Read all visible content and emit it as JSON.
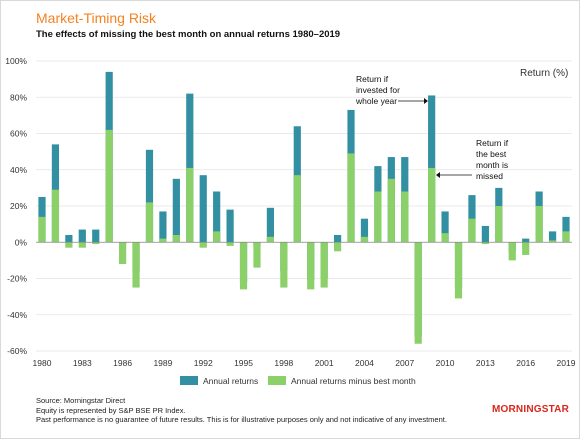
{
  "header": {
    "title": "Market-Timing Risk",
    "subtitle": "The effects of missing the best month on annual returns 1980–2019"
  },
  "footer": {
    "line1": "Source: Morningstar Direct",
    "line2": "Equity is represented by S&P BSE PR Index.",
    "line3": "Past performance is no guarantee of future results. This is for illustrative purposes only and not indicative of any investment.",
    "logo_text": "MORNINGSTAR"
  },
  "colors": {
    "annual": "#3390a3",
    "minus_best": "#8cd06a",
    "title": "#f58220",
    "logo": "#d9261c"
  },
  "chart_data": {
    "type": "bar",
    "title": "Market-Timing Risk",
    "subtitle": "The effects of missing the best month on annual returns 1980–2019",
    "ylabel": "Return (%)",
    "ylim": [
      -60,
      100
    ],
    "yticks": [
      -60,
      -40,
      -20,
      0,
      20,
      40,
      60,
      80,
      100
    ],
    "ytick_labels": [
      "-60%",
      "-40%",
      "-20%",
      "0%",
      "20%",
      "40%",
      "60%",
      "80%",
      "100%"
    ],
    "xtick_labels": [
      "1980",
      "1983",
      "1986",
      "1989",
      "1992",
      "1995",
      "1998",
      "2001",
      "2004",
      "2007",
      "2010",
      "2013",
      "2016",
      "2019"
    ],
    "categories": [
      1980,
      1981,
      1982,
      1983,
      1984,
      1985,
      1986,
      1987,
      1988,
      1989,
      1990,
      1991,
      1992,
      1993,
      1994,
      1995,
      1996,
      1997,
      1998,
      1999,
      2000,
      2001,
      2002,
      2003,
      2004,
      2005,
      2006,
      2007,
      2008,
      2009,
      2010,
      2011,
      2012,
      2013,
      2014,
      2015,
      2016,
      2017,
      2018,
      2019
    ],
    "series": [
      {
        "name": "Annual returns",
        "values": [
          25,
          54,
          4,
          7,
          7,
          94,
          -1,
          -16,
          51,
          17,
          35,
          82,
          37,
          28,
          18,
          -22,
          -2,
          19,
          -16,
          64,
          -21,
          -20,
          4,
          73,
          13,
          42,
          47,
          47,
          -52,
          81,
          17,
          -25,
          26,
          9,
          30,
          -5,
          2,
          28,
          6,
          14
        ]
      },
      {
        "name": "Annual returns minus best month",
        "values": [
          14,
          29,
          -3,
          -3,
          -1,
          62,
          -12,
          -25,
          22,
          2,
          4,
          41,
          -3,
          6,
          -2,
          -26,
          -14,
          3,
          -25,
          37,
          -26,
          -25,
          -5,
          49,
          3,
          28,
          35,
          28,
          -56,
          41,
          5,
          -31,
          13,
          -1,
          20,
          -10,
          -7,
          20,
          1,
          6
        ]
      }
    ],
    "annotations": [
      {
        "text_lines": [
          "Return if",
          "invested for",
          "whole year"
        ],
        "year": 2009
      },
      {
        "text_lines": [
          "Return if",
          "the best",
          "month is",
          "missed"
        ],
        "year": 2009
      }
    ],
    "legend_position": "bottom"
  }
}
